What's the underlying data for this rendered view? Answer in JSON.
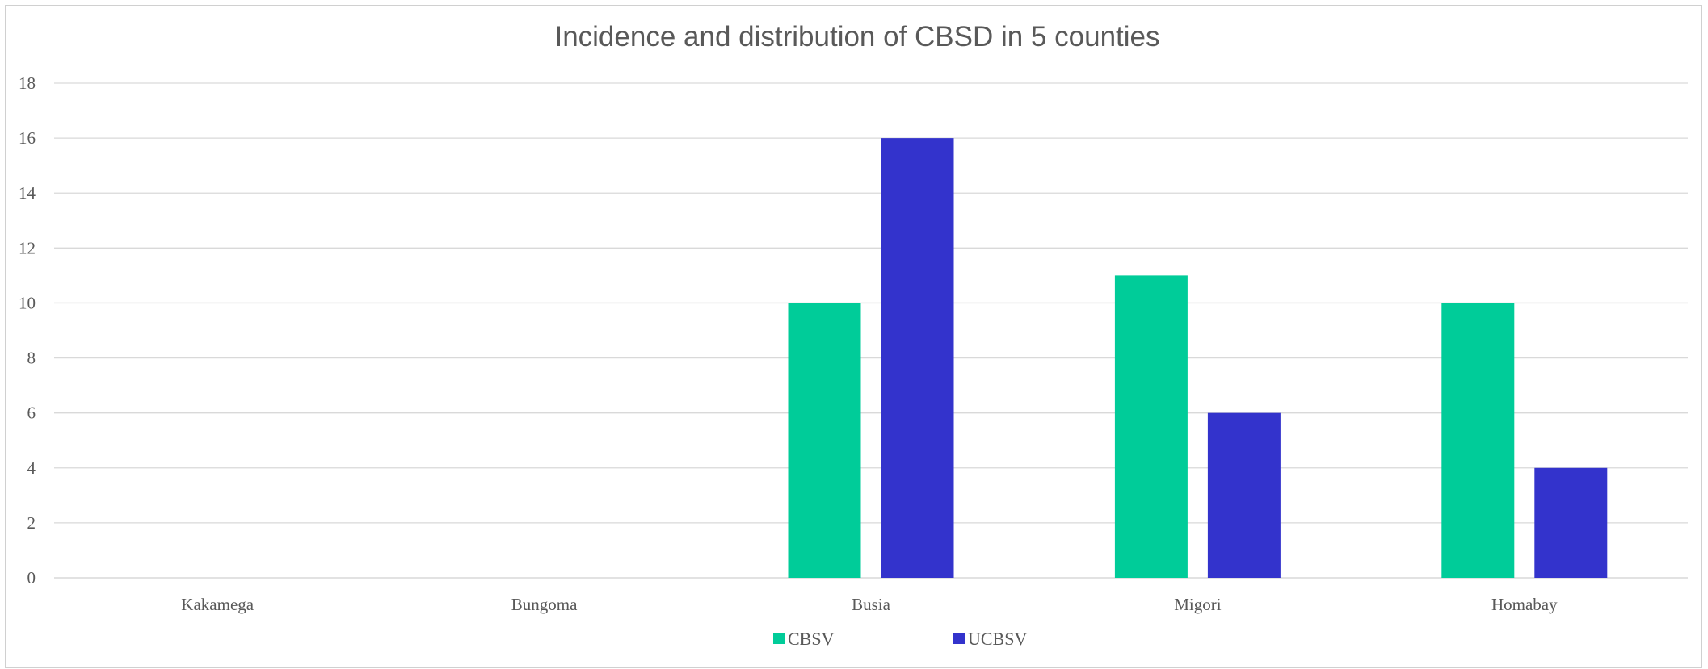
{
  "chart_data": {
    "type": "bar",
    "title": "Incidence and distribution of CBSD in 5 counties",
    "xlabel": "",
    "ylabel": "",
    "categories": [
      "Kakamega",
      "Bungoma",
      "Busia",
      "Migori",
      "Homabay"
    ],
    "series": [
      {
        "name": "CBSV",
        "color": "#00cc99",
        "values": [
          0,
          0,
          10,
          11,
          10
        ]
      },
      {
        "name": "UCBSV",
        "color": "#3333cc",
        "values": [
          0,
          0,
          16,
          6,
          4
        ]
      }
    ],
    "ylim": [
      0,
      18
    ],
    "yticks": [
      "0",
      "2",
      "4",
      "6",
      "8",
      "10",
      "12",
      "14",
      "16",
      "18"
    ],
    "grid": true,
    "legend_position": "bottom"
  }
}
